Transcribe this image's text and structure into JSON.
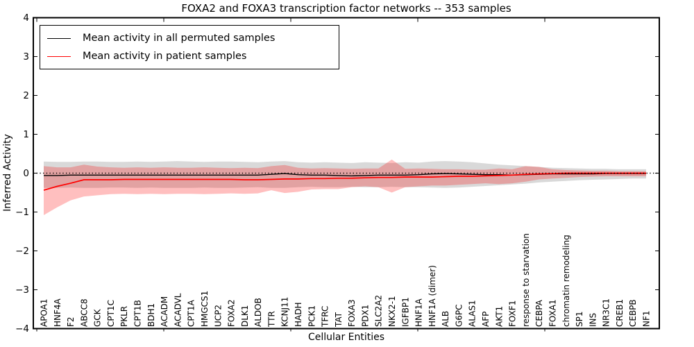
{
  "title": "FOXA2 and FOXA3 transcription factor networks -- 353 samples",
  "axes": {
    "ylabel": "Inferred Activity",
    "xlabel": "Cellular Entities",
    "yticks": [
      4,
      3,
      2,
      1,
      0,
      -1,
      -2,
      -3,
      -4
    ],
    "ylim": [
      -4,
      4
    ]
  },
  "legend": [
    {
      "label": "Mean activity in all permuted samples",
      "color": "#000000"
    },
    {
      "label": "Mean activity in patient samples",
      "color": "#ff0000"
    }
  ],
  "colors": {
    "background": "#ffffff",
    "axis": "#000000",
    "permuted_line": "#000000",
    "patient_line": "#ff0000",
    "permuted_band": "#808080",
    "patient_band": "#ff0000"
  },
  "chart_data": {
    "type": "line",
    "title": "FOXA2 and FOXA3 transcription factor networks -- 353 samples",
    "xlabel": "Cellular Entities",
    "ylabel": "Inferred Activity",
    "ylim": [
      -4,
      4
    ],
    "grid": false,
    "legend_position": "upper left",
    "zero_line": 0,
    "categories": [
      "APOA1",
      "HNF4A",
      "F2",
      "ABCC8",
      "GCK",
      "CPT1C",
      "PKLR",
      "CPT1B",
      "BDH1",
      "ACADM",
      "ACADVL",
      "CPT1A",
      "HMGCS1",
      "UCP2",
      "FOXA2",
      "DLK1",
      "ALDOB",
      "TTR",
      "KCNJ11",
      "HADH",
      "PCK1",
      "TFRC",
      "TAT",
      "FOXA3",
      "PDX1",
      "SLC2A2",
      "NKX2-1",
      "IGFBP1",
      "HNF1A",
      "HNF1A (dimer)",
      "ALB",
      "G6PC",
      "ALAS1",
      "AFP",
      "AKT1",
      "FOXF1",
      "response to starvation",
      "CEBPA",
      "FOXA1",
      "chromatin remodeling",
      "SP1",
      "INS",
      "NR3C1",
      "CREB1",
      "CEBPB",
      "NF1"
    ],
    "series": [
      {
        "name": "Mean activity in all permuted samples",
        "color": "#000000",
        "values": [
          -0.06,
          -0.06,
          -0.05,
          -0.05,
          -0.05,
          -0.05,
          -0.05,
          -0.05,
          -0.05,
          -0.05,
          -0.05,
          -0.05,
          -0.05,
          -0.05,
          -0.05,
          -0.05,
          -0.05,
          -0.03,
          -0.01,
          -0.04,
          -0.05,
          -0.05,
          -0.06,
          -0.07,
          -0.06,
          -0.05,
          -0.05,
          -0.05,
          -0.04,
          -0.02,
          -0.01,
          -0.02,
          -0.03,
          -0.04,
          -0.04,
          -0.05,
          -0.04,
          -0.03,
          -0.02,
          -0.02,
          -0.02,
          -0.02,
          -0.01,
          -0.01,
          -0.01,
          -0.01
        ]
      },
      {
        "name": "Mean activity in patient samples",
        "color": "#ff0000",
        "values": [
          -0.44,
          -0.34,
          -0.26,
          -0.17,
          -0.17,
          -0.17,
          -0.16,
          -0.16,
          -0.16,
          -0.16,
          -0.16,
          -0.16,
          -0.16,
          -0.16,
          -0.16,
          -0.17,
          -0.17,
          -0.16,
          -0.15,
          -0.15,
          -0.14,
          -0.14,
          -0.13,
          -0.13,
          -0.12,
          -0.11,
          -0.11,
          -0.1,
          -0.1,
          -0.1,
          -0.09,
          -0.08,
          -0.08,
          -0.07,
          -0.06,
          -0.05,
          -0.03,
          -0.02,
          -0.01,
          0.0,
          0.0,
          0.0,
          0.0,
          0.0,
          0.0,
          0.0
        ]
      }
    ],
    "bands": [
      {
        "name": "permuted-samples-range",
        "color": "#808080",
        "opacity": 0.3,
        "upper": [
          0.3,
          0.29,
          0.29,
          0.3,
          0.3,
          0.29,
          0.29,
          0.3,
          0.29,
          0.3,
          0.31,
          0.3,
          0.29,
          0.3,
          0.3,
          0.29,
          0.28,
          0.3,
          0.31,
          0.28,
          0.27,
          0.28,
          0.27,
          0.26,
          0.28,
          0.27,
          0.26,
          0.28,
          0.27,
          0.3,
          0.31,
          0.3,
          0.28,
          0.25,
          0.22,
          0.2,
          0.18,
          0.16,
          0.14,
          0.13,
          0.12,
          0.11,
          0.11,
          0.1,
          0.1,
          0.1
        ],
        "lower": [
          -0.38,
          -0.38,
          -0.37,
          -0.38,
          -0.38,
          -0.37,
          -0.37,
          -0.38,
          -0.37,
          -0.38,
          -0.38,
          -0.38,
          -0.37,
          -0.38,
          -0.38,
          -0.37,
          -0.36,
          -0.38,
          -0.38,
          -0.36,
          -0.35,
          -0.36,
          -0.36,
          -0.35,
          -0.36,
          -0.36,
          -0.35,
          -0.36,
          -0.36,
          -0.37,
          -0.38,
          -0.37,
          -0.35,
          -0.33,
          -0.31,
          -0.29,
          -0.27,
          -0.24,
          -0.22,
          -0.2,
          -0.18,
          -0.17,
          -0.16,
          -0.15,
          -0.14,
          -0.14
        ]
      },
      {
        "name": "patient-samples-range",
        "color": "#ff0000",
        "opacity": 0.25,
        "upper": [
          0.18,
          0.15,
          0.15,
          0.22,
          0.17,
          0.15,
          0.14,
          0.15,
          0.14,
          0.15,
          0.14,
          0.14,
          0.15,
          0.14,
          0.13,
          0.14,
          0.13,
          0.18,
          0.21,
          0.14,
          0.12,
          0.13,
          0.12,
          0.11,
          0.12,
          0.12,
          0.35,
          0.11,
          0.12,
          0.11,
          0.1,
          0.1,
          0.09,
          0.09,
          0.12,
          0.1,
          0.18,
          0.16,
          0.1,
          0.08,
          0.07,
          0.06,
          0.06,
          0.05,
          0.05,
          0.05
        ],
        "lower": [
          -1.08,
          -0.88,
          -0.7,
          -0.6,
          -0.57,
          -0.54,
          -0.53,
          -0.54,
          -0.53,
          -0.54,
          -0.53,
          -0.53,
          -0.54,
          -0.53,
          -0.52,
          -0.53,
          -0.52,
          -0.44,
          -0.51,
          -0.48,
          -0.42,
          -0.41,
          -0.41,
          -0.36,
          -0.34,
          -0.36,
          -0.5,
          -0.36,
          -0.34,
          -0.32,
          -0.32,
          -0.3,
          -0.28,
          -0.26,
          -0.28,
          -0.26,
          -0.22,
          -0.16,
          -0.14,
          -0.12,
          -0.1,
          -0.09,
          -0.08,
          -0.08,
          -0.08,
          -0.08
        ]
      }
    ]
  }
}
